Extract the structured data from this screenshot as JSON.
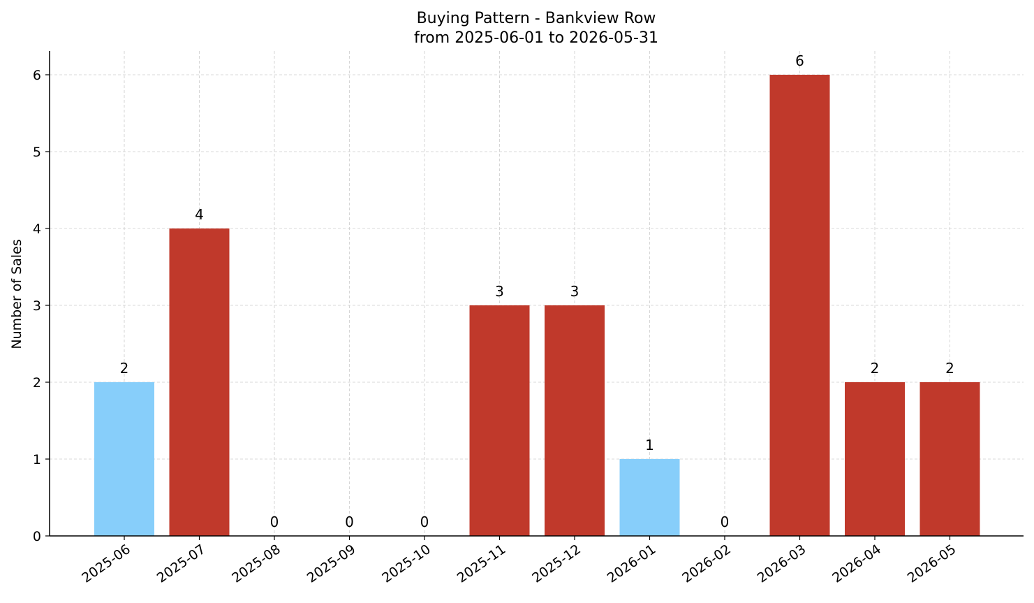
{
  "chart_data": {
    "type": "bar",
    "title": "Buying Pattern - Bankview Row",
    "subtitle": "from 2025-06-01 to 2026-05-31",
    "xlabel": "",
    "ylabel": "Number of Sales",
    "categories": [
      "2025-06",
      "2025-07",
      "2025-08",
      "2025-09",
      "2025-10",
      "2025-11",
      "2025-12",
      "2026-01",
      "2026-02",
      "2026-03",
      "2026-04",
      "2026-05"
    ],
    "values": [
      2,
      4,
      0,
      0,
      0,
      3,
      3,
      1,
      0,
      6,
      2,
      2
    ],
    "colors": [
      "#87cefa",
      "#c0392b",
      "#c0392b",
      "#c0392b",
      "#c0392b",
      "#c0392b",
      "#c0392b",
      "#87cefa",
      "#c0392b",
      "#c0392b",
      "#c0392b",
      "#c0392b"
    ],
    "yticks": [
      0,
      1,
      2,
      3,
      4,
      5,
      6
    ],
    "ylim": [
      0,
      6.3
    ],
    "grid": true,
    "data_labels": true
  }
}
